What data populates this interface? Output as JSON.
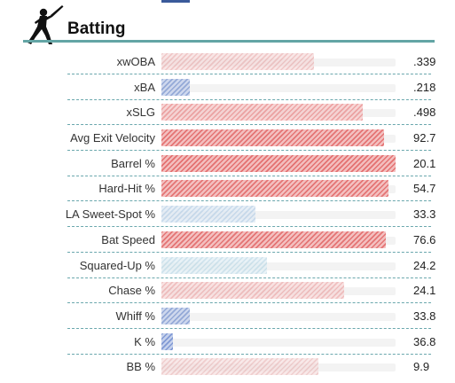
{
  "section": {
    "title": "Batting",
    "icon": "batter-icon"
  },
  "colors": {
    "rule": "#63a5a5",
    "separator": "#6aa7ad",
    "track": "#f3f3f3"
  },
  "metrics": [
    {
      "label": "xwOBA",
      "value": ".339",
      "percentile": 0.65,
      "color": "#e8a9a9",
      "intensity": 0.45
    },
    {
      "label": "xBA",
      "value": ".218",
      "percentile": 0.12,
      "color": "#8fa5d6",
      "intensity": 0.9
    },
    {
      "label": "xSLG",
      "value": ".498",
      "percentile": 0.86,
      "color": "#e98a8a",
      "intensity": 0.65
    },
    {
      "label": "Avg Exit Velocity",
      "value": "92.7",
      "percentile": 0.95,
      "color": "#e46d6d",
      "intensity": 0.9
    },
    {
      "label": "Barrel %",
      "value": "20.1",
      "percentile": 1.0,
      "color": "#e46d6d",
      "intensity": 0.95
    },
    {
      "label": "Hard-Hit %",
      "value": "54.7",
      "percentile": 0.97,
      "color": "#e46d6d",
      "intensity": 0.9
    },
    {
      "label": "LA Sweet-Spot %",
      "value": "33.3",
      "percentile": 0.4,
      "color": "#b7cfe6",
      "intensity": 0.6
    },
    {
      "label": "Bat Speed",
      "value": "76.6",
      "percentile": 0.96,
      "color": "#e46d6d",
      "intensity": 0.9
    },
    {
      "label": "Squared-Up %",
      "value": "24.2",
      "percentile": 0.45,
      "color": "#bcd9e6",
      "intensity": 0.55
    },
    {
      "label": "Chase %",
      "value": "24.1",
      "percentile": 0.78,
      "color": "#eba6a6",
      "intensity": 0.55
    },
    {
      "label": "Whiff %",
      "value": "33.8",
      "percentile": 0.12,
      "color": "#8fa5d6",
      "intensity": 0.9
    },
    {
      "label": "K %",
      "value": "36.8",
      "percentile": 0.05,
      "color": "#7d97d4",
      "intensity": 0.95
    },
    {
      "label": "BB %",
      "value": "9.9",
      "percentile": 0.67,
      "color": "#e8b3b3",
      "intensity": 0.45
    }
  ]
}
